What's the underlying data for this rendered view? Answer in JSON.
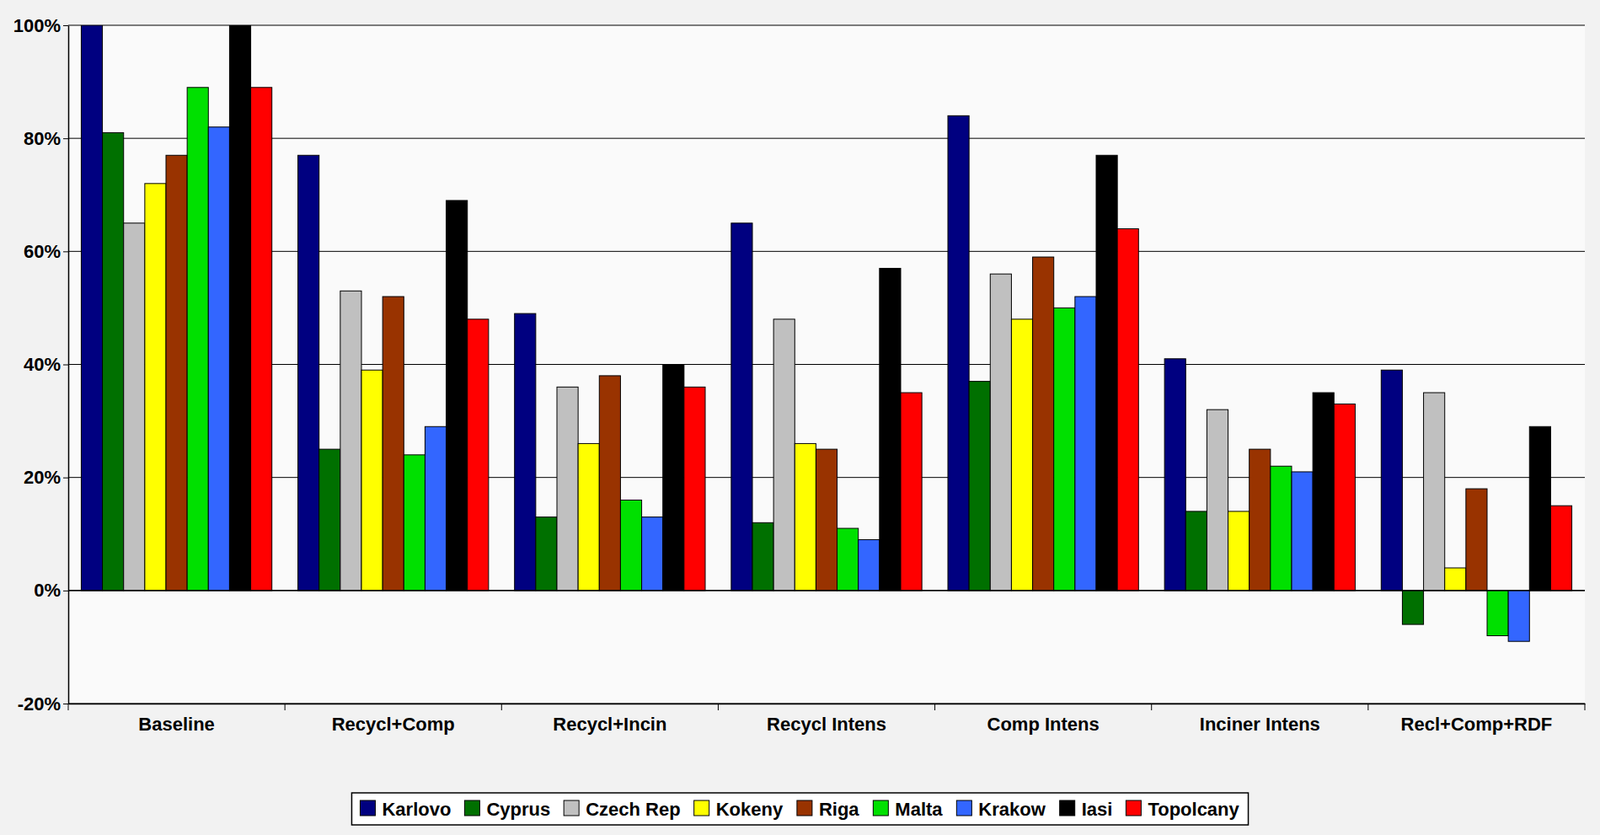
{
  "chart_data": {
    "type": "bar",
    "categories": [
      "Baseline",
      "Recycl+Comp",
      "Recycl+Incin",
      "Recycl Intens",
      "Comp Intens",
      "Inciner Intens",
      "Recl+Comp+RDF"
    ],
    "series": [
      {
        "name": "Karlovo",
        "color": "#000080",
        "values": [
          100,
          77,
          49,
          65,
          84,
          41,
          39
        ]
      },
      {
        "name": "Cyprus",
        "color": "#007000",
        "values": [
          81,
          25,
          13,
          12,
          37,
          14,
          -6
        ]
      },
      {
        "name": "Czech Rep",
        "color": "#c0c0c0",
        "values": [
          65,
          53,
          36,
          48,
          56,
          32,
          35
        ]
      },
      {
        "name": "Kokeny",
        "color": "#ffff00",
        "values": [
          72,
          39,
          26,
          26,
          48,
          14,
          4
        ]
      },
      {
        "name": "Riga",
        "color": "#993300",
        "values": [
          77,
          52,
          38,
          25,
          59,
          25,
          18
        ]
      },
      {
        "name": "Malta",
        "color": "#00e000",
        "values": [
          89,
          24,
          16,
          11,
          50,
          22,
          -8
        ]
      },
      {
        "name": "Krakow",
        "color": "#3366ff",
        "values": [
          82,
          29,
          13,
          9,
          52,
          21,
          -9
        ]
      },
      {
        "name": "Iasi",
        "color": "#000000",
        "values": [
          100,
          69,
          40,
          57,
          77,
          35,
          29
        ]
      },
      {
        "name": "Topolcany",
        "color": "#ff0000",
        "values": [
          89,
          48,
          36,
          35,
          64,
          33,
          15
        ]
      }
    ],
    "ylim": [
      -20,
      100
    ],
    "yticks": [
      {
        "value": -20,
        "label": "-20%"
      },
      {
        "value": 0,
        "label": "0%"
      },
      {
        "value": 20,
        "label": "20%"
      },
      {
        "value": 40,
        "label": "40%"
      },
      {
        "value": 60,
        "label": "60%"
      },
      {
        "value": 80,
        "label": "80%"
      },
      {
        "value": 100,
        "label": "100%"
      }
    ],
    "grid": true,
    "legend": "bottom"
  }
}
